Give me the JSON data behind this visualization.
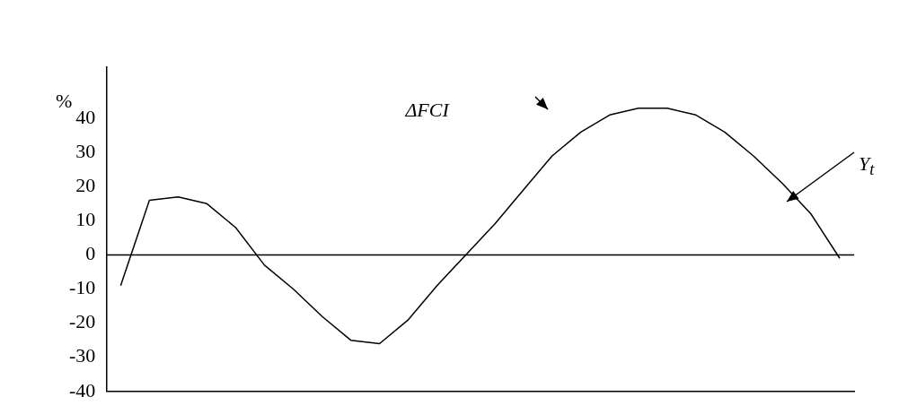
{
  "chart_data": {
    "type": "line",
    "ylabel": "%",
    "categories": [
      null,
      null,
      null,
      null,
      null,
      null,
      null,
      null,
      null,
      null,
      null,
      null,
      null,
      null,
      null,
      null,
      null,
      null,
      null,
      null,
      null,
      null,
      null,
      null,
      null,
      null
    ],
    "series": [
      {
        "color": "#000000",
        "values": [
          -9,
          16,
          17,
          15,
          8,
          -3,
          -10,
          -18,
          -25,
          -26,
          -19,
          -9,
          0,
          9,
          19,
          29,
          36,
          41,
          43,
          43,
          41,
          36,
          29,
          21,
          12,
          -1
        ]
      }
    ],
    "ylim": [
      -40,
      55
    ],
    "yticks": [
      -40,
      -30,
      -20,
      -10,
      0,
      10,
      20,
      30,
      40
    ],
    "tick_labels": "y",
    "grid": false,
    "legend": false,
    "marker": "none",
    "line_style": "solid",
    "ref_lines": [
      {
        "axis": "y",
        "value": 0,
        "color": "#000000"
      }
    ],
    "annotations": [
      "ΔFCI",
      "Y$_{t}$"
    ]
  }
}
